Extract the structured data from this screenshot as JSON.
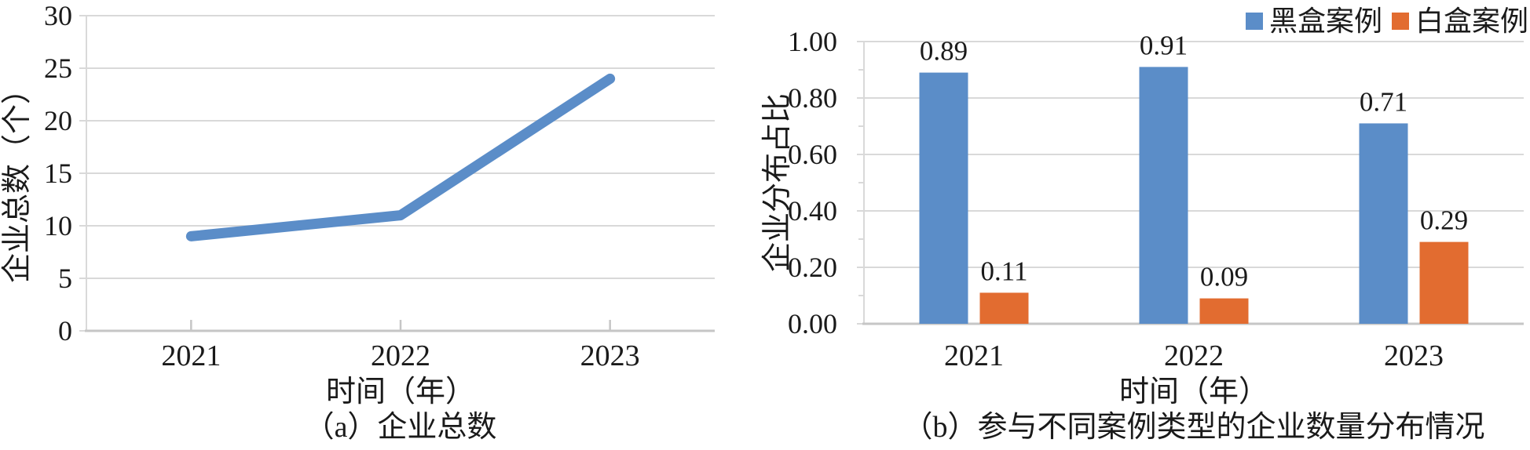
{
  "colors": {
    "series_blue": "#5B8DC8",
    "series_orange": "#E26C30",
    "gridline": "#D9D9D9",
    "axis": "#C6C6C6",
    "text": "#1A1A1A"
  },
  "chart_data": [
    {
      "type": "line",
      "caption": "（a）企业总数",
      "xlabel": "时间（年）",
      "ylabel": "企业总数（个）",
      "categories": [
        "2021",
        "2022",
        "2023"
      ],
      "series": [
        {
          "name": "企业总数",
          "values": [
            9,
            11,
            24
          ],
          "color_key": "series_blue"
        }
      ],
      "ylim": [
        0,
        30
      ],
      "ytick_step": 5,
      "ytick_labels": [
        "0",
        "5",
        "10",
        "15",
        "20",
        "25",
        "30"
      ],
      "grid": true,
      "legend_position": "none"
    },
    {
      "type": "bar",
      "caption": "（b）参与不同案例类型的企业数量分布情况",
      "xlabel": "时间（年）",
      "ylabel": "企业分布占比",
      "categories": [
        "2021",
        "2022",
        "2023"
      ],
      "series": [
        {
          "name": "黑盒案例",
          "values": [
            0.89,
            0.91,
            0.71
          ],
          "color_key": "series_blue"
        },
        {
          "name": "白盒案例",
          "values": [
            0.11,
            0.09,
            0.29
          ],
          "color_key": "series_orange"
        }
      ],
      "ylim": [
        0,
        1
      ],
      "ytick_step": 0.2,
      "ytick_labels": [
        "0.00",
        "0.20",
        "0.40",
        "0.60",
        "0.80",
        "1.00"
      ],
      "data_labels": true,
      "grid": true,
      "legend_position": "top-right"
    }
  ]
}
